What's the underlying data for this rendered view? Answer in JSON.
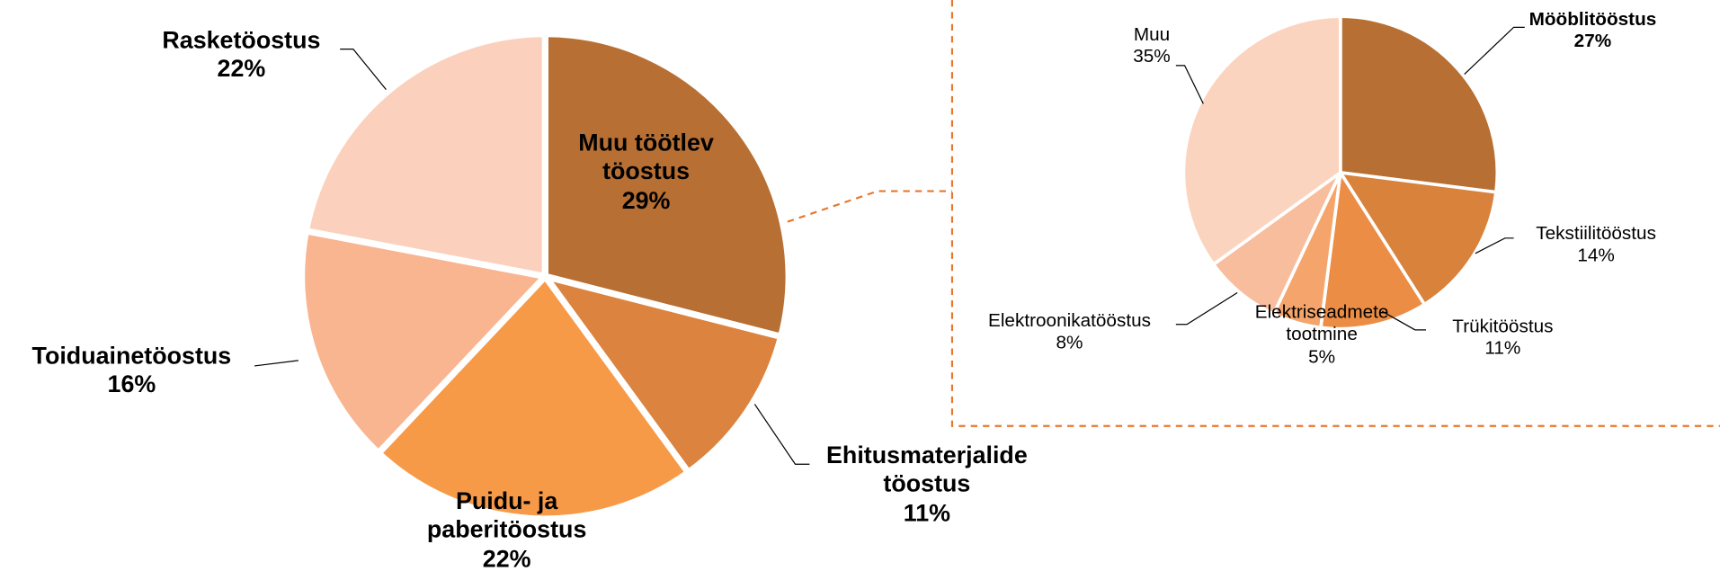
{
  "chart_data": [
    {
      "type": "pie",
      "categories": [
        "Muu töötlev töostus",
        "Ehitusmaterjalide töostus",
        "Puidu- ja paberitöostus",
        "Toiduainetöostus",
        "Rasketöostus"
      ],
      "values": [
        29,
        11,
        22,
        16,
        22
      ],
      "value_labels": [
        "29%",
        "11%",
        "22%",
        "16%",
        "22%"
      ],
      "colors": [
        "#b86f33",
        "#dc843f",
        "#f79a48",
        "#f8b590",
        "#fbd0bc"
      ]
    },
    {
      "type": "pie",
      "categories": [
        "Mööblitööstus",
        "Tekstiilitööstus",
        "Trükitööstus",
        "Elektriseadmete tootmine",
        "Elektroonikatööstus",
        "Muu"
      ],
      "values": [
        27,
        14,
        11,
        5,
        8,
        35
      ],
      "value_labels": [
        "27%",
        "14%",
        "11%",
        "5%",
        "8%",
        "35%"
      ],
      "colors": [
        "#b86f33",
        "#d8823c",
        "#ec8d45",
        "#f5a56b",
        "#f8bd9c",
        "#fbd4bf"
      ]
    }
  ]
}
